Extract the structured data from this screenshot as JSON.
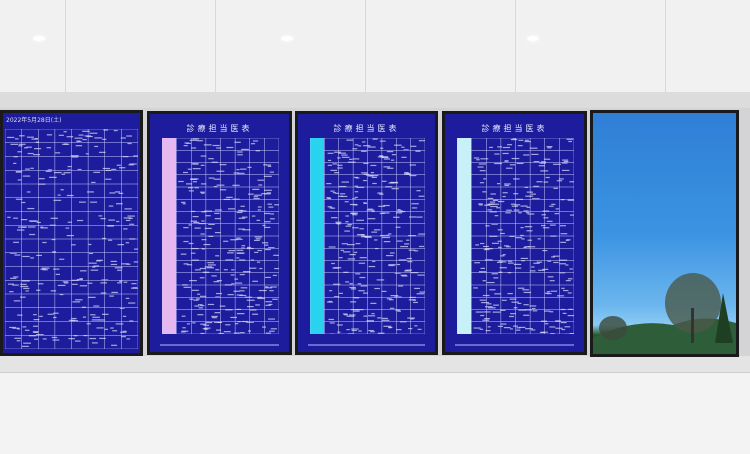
{
  "screens": [
    {
      "type": "schedule",
      "date": "2022年5月28日(土)",
      "accent": "#1c1c9c"
    },
    {
      "type": "schedule",
      "title": "診療担当医表",
      "accent": "#e6b8f0"
    },
    {
      "type": "schedule",
      "title": "診療担当医表",
      "accent": "#29d3f0"
    },
    {
      "type": "schedule",
      "title": "診療担当医表",
      "accent": "#c8f0f8"
    },
    {
      "type": "photo",
      "subject": "tree-and-sky"
    }
  ]
}
